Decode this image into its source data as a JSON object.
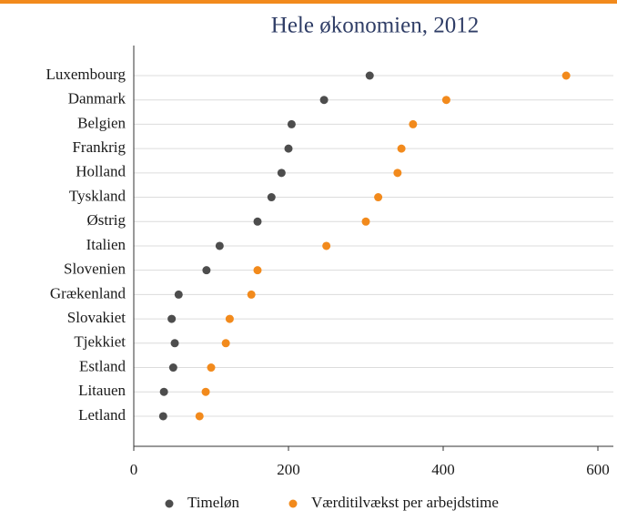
{
  "chart_data": {
    "type": "dot",
    "title": "Hele økonomien, 2012",
    "categories": [
      "Luxembourg",
      "Danmark",
      "Belgien",
      "Frankrig",
      "Holland",
      "Tyskland",
      "Østrig",
      "Italien",
      "Slovenien",
      "Grækenland",
      "Slovakiet",
      "Tjekkiet",
      "Estland",
      "Litauen",
      "Letland"
    ],
    "series": [
      {
        "name": "Timeløn",
        "color": "#4d4d4d",
        "values": [
          305,
          246,
          204,
          200,
          191,
          178,
          160,
          111,
          94,
          58,
          49,
          53,
          51,
          39,
          38
        ]
      },
      {
        "name": "Værditilvækst per arbejdstime",
        "color": "#f28a1c",
        "values": [
          559,
          404,
          361,
          346,
          341,
          316,
          300,
          249,
          160,
          152,
          124,
          119,
          100,
          93,
          85
        ]
      }
    ],
    "xlim": [
      0,
      620
    ],
    "xticks": [
      0,
      200,
      400,
      600
    ],
    "grid": true
  }
}
